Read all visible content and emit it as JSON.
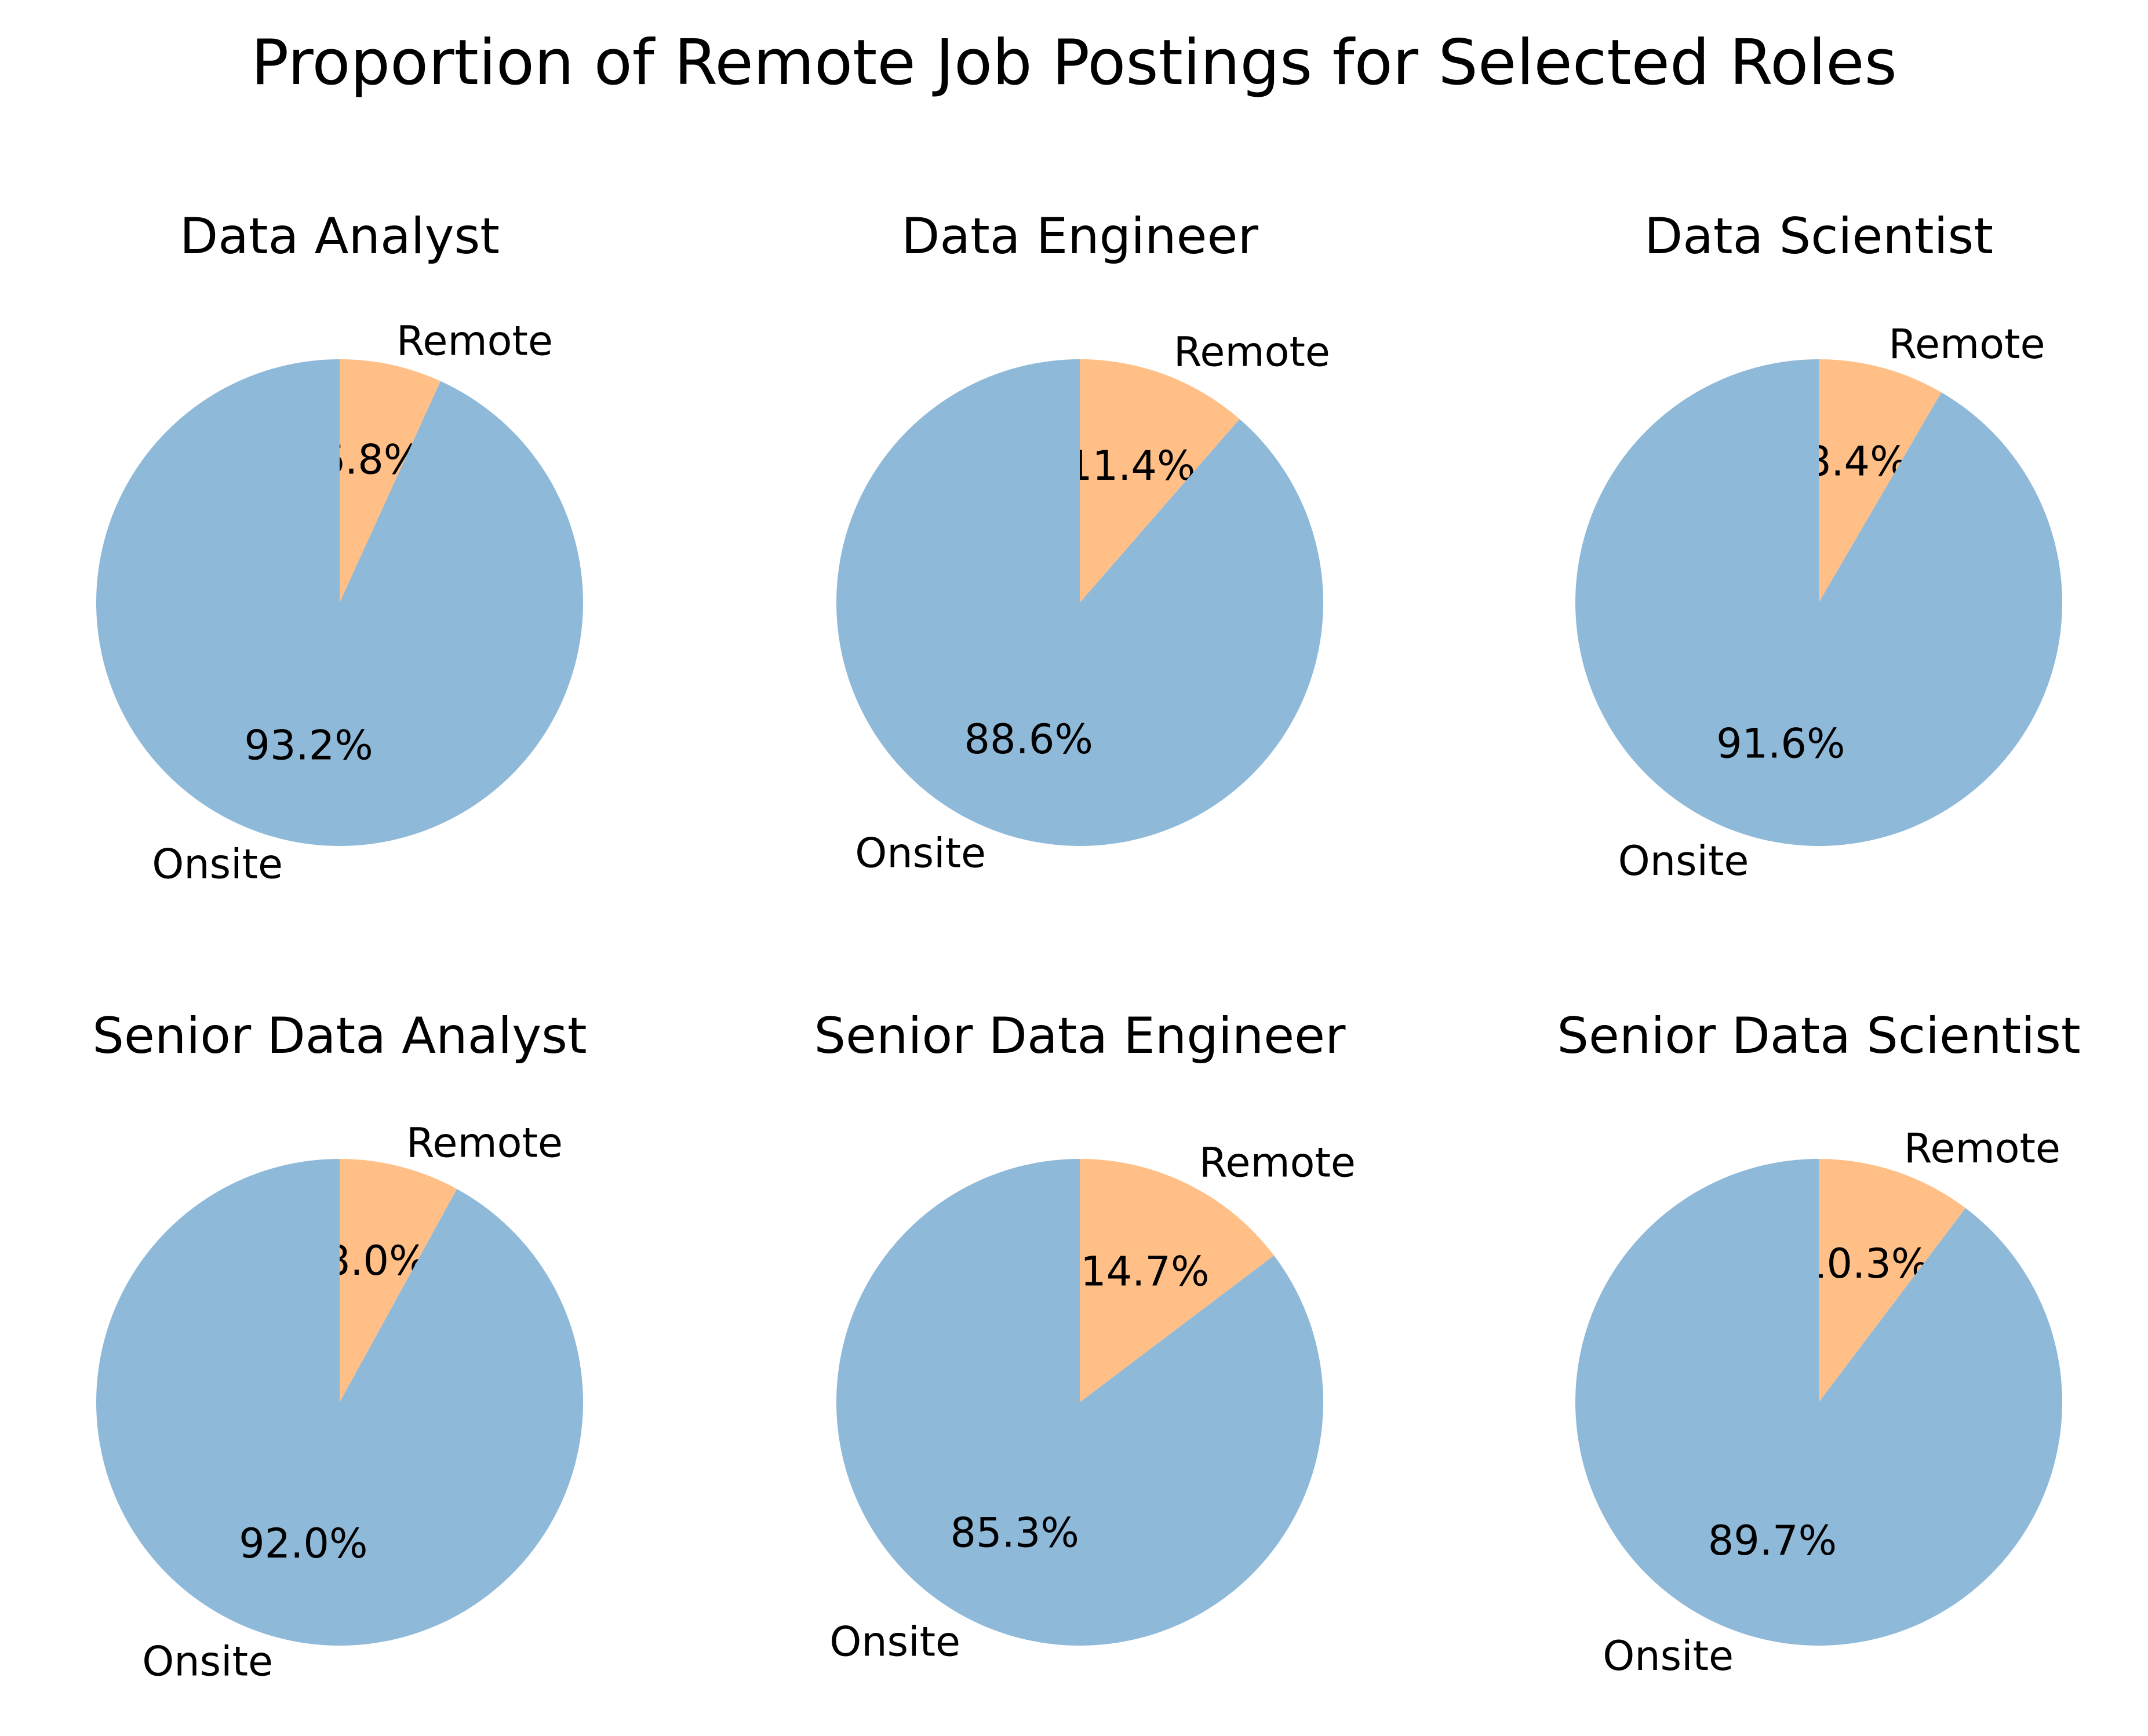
{
  "chart_data": {
    "type": "pie",
    "title": "Proportion of Remote Job Postings for Selected Roles",
    "colors": {
      "Remote": "#ffbf86",
      "Onsite": "#8fb9d9"
    },
    "start_angle": "top",
    "direction": "clockwise",
    "label_format": "percent_one_decimal",
    "charts": [
      {
        "title": "Data Analyst",
        "slices": [
          {
            "label": "Remote",
            "value": 6.8
          },
          {
            "label": "Onsite",
            "value": 93.2
          }
        ]
      },
      {
        "title": "Data Engineer",
        "slices": [
          {
            "label": "Remote",
            "value": 11.4
          },
          {
            "label": "Onsite",
            "value": 88.6
          }
        ]
      },
      {
        "title": "Data Scientist",
        "slices": [
          {
            "label": "Remote",
            "value": 8.4
          },
          {
            "label": "Onsite",
            "value": 91.6
          }
        ]
      },
      {
        "title": "Senior Data Analyst",
        "slices": [
          {
            "label": "Remote",
            "value": 8.0
          },
          {
            "label": "Onsite",
            "value": 92.0
          }
        ]
      },
      {
        "title": "Senior Data Engineer",
        "slices": [
          {
            "label": "Remote",
            "value": 14.7
          },
          {
            "label": "Onsite",
            "value": 85.3
          }
        ]
      },
      {
        "title": "Senior Data Scientist",
        "slices": [
          {
            "label": "Remote",
            "value": 10.3
          },
          {
            "label": "Onsite",
            "value": 89.7
          }
        ]
      }
    ]
  }
}
